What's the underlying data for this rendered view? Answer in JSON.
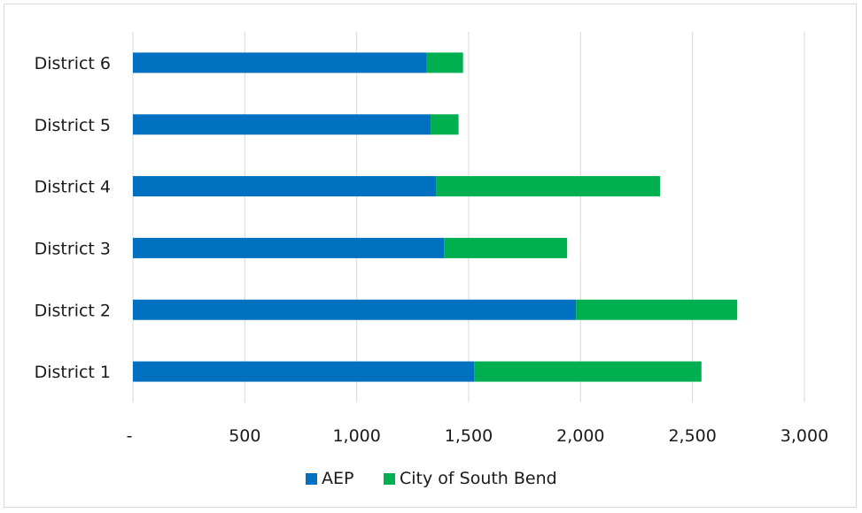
{
  "chart_data": {
    "type": "bar",
    "orientation": "horizontal",
    "stacked": true,
    "categories": [
      "District 6",
      "District 5",
      "District 4",
      "District 3",
      "District 2",
      "District 1"
    ],
    "series": [
      {
        "name": "AEP",
        "color": "#0070c0",
        "values": [
          1310,
          1330,
          1355,
          1390,
          1980,
          1525
        ]
      },
      {
        "name": "City of South Bend",
        "color": "#00b050",
        "values": [
          165,
          125,
          1000,
          550,
          720,
          1015
        ]
      }
    ],
    "x_ticks": [
      0,
      500,
      1000,
      1500,
      2000,
      2500,
      3000
    ],
    "x_tick_labels": [
      "-",
      "500",
      "1,000",
      "1,500",
      "2,000",
      "2,500",
      "3,000"
    ],
    "xlim": [
      0,
      3000
    ],
    "grid": "vertical",
    "legend_position": "bottom"
  }
}
